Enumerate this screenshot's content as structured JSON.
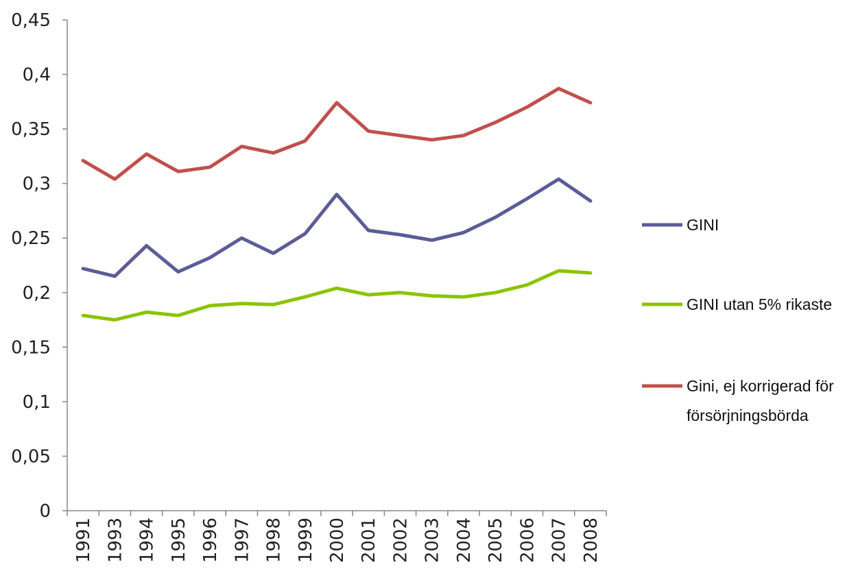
{
  "chart_data": {
    "type": "line",
    "categories": [
      "1991",
      "1993",
      "1994",
      "1995",
      "1996",
      "1997",
      "1998",
      "1999",
      "2000",
      "2001",
      "2002",
      "2003",
      "2004",
      "2005",
      "2006",
      "2007",
      "2008"
    ],
    "ylim": [
      0,
      0.45
    ],
    "yticks": [
      "0",
      "0,05",
      "0,1",
      "0,15",
      "0,2",
      "0,25",
      "0,3",
      "0,35",
      "0,4",
      "0,45"
    ],
    "grid": false,
    "legend_position": "right",
    "series": [
      {
        "name": "GINI",
        "color": "#5b5c97",
        "values": [
          0.222,
          0.215,
          0.243,
          0.219,
          0.232,
          0.25,
          0.236,
          0.254,
          0.29,
          0.257,
          0.253,
          0.248,
          0.255,
          0.269,
          0.286,
          0.304,
          0.284
        ]
      },
      {
        "name": "GINI utan 5% rikaste",
        "color": "#8bc401",
        "values": [
          0.179,
          0.175,
          0.182,
          0.179,
          0.188,
          0.19,
          0.189,
          0.196,
          0.204,
          0.198,
          0.2,
          0.197,
          0.196,
          0.2,
          0.207,
          0.22,
          0.218
        ]
      },
      {
        "name": "Gini, ej korrigerad för försörjningsbörda",
        "label_lines": [
          "Gini, ej korrigerad för",
          "försörjningsbörda"
        ],
        "color": "#c0504d",
        "values": [
          0.321,
          0.304,
          0.327,
          0.311,
          0.315,
          0.334,
          0.328,
          0.339,
          0.374,
          0.348,
          0.344,
          0.34,
          0.344,
          0.356,
          0.37,
          0.387,
          0.374
        ]
      }
    ]
  }
}
